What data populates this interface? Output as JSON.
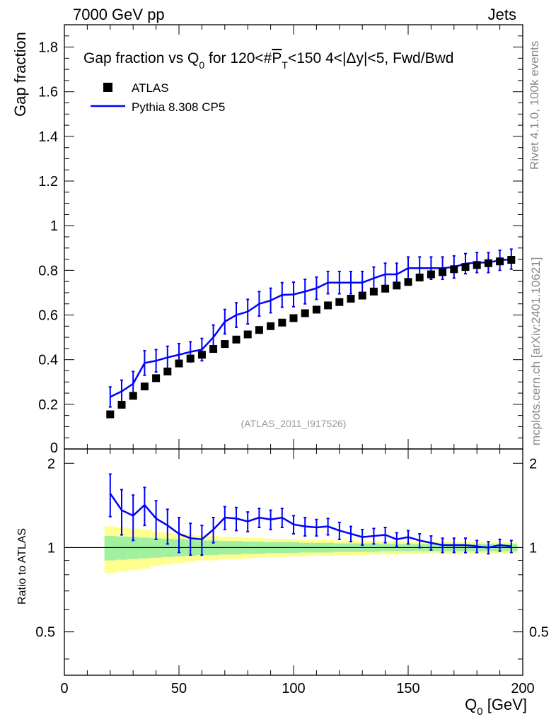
{
  "header": {
    "left": "7000 GeV pp",
    "right": "Jets",
    "side_info": "Rivet 4.1.0,  100k events",
    "side_source": "mcplots.cern.ch [arXiv:2401.10621]"
  },
  "colors": {
    "data": "#000000",
    "mc": "#0000ff",
    "band_inner": "#a0f0a0",
    "band_outer": "#ffff90"
  },
  "chart_data": {
    "type": "line",
    "title": "Gap fraction vs Q",
    "title_sub": "0",
    "title_rest": " for 120<#",
    "title_pt": "P",
    "title_pt_sub": "T",
    "title_tail": "<150  4<|Δy|<5, Fwd/Bwd",
    "watermark": "(ATLAS_2011_I917526)",
    "xlabel": "Q",
    "xlabel_sub": "0",
    "xlabel_unit": " [GeV]",
    "ylabel": "Gap fraction",
    "ratio_ylabel": "Ratio to ATLAS",
    "xlim": [
      0,
      200
    ],
    "ylim": [
      0,
      1.9
    ],
    "ratio_ylim": [
      0.35,
      2.25
    ],
    "x_ticks": [
      0,
      50,
      100,
      150,
      200
    ],
    "y_ticks": [
      0.2,
      0.4,
      0.6,
      0.8,
      1,
      1.2,
      1.4,
      1.6,
      1.8
    ],
    "y_zero_label": "0",
    "ratio_ticks": [
      0.5,
      1,
      2
    ],
    "x": [
      20,
      25,
      30,
      35,
      40,
      45,
      50,
      55,
      60,
      65,
      70,
      75,
      80,
      85,
      90,
      95,
      100,
      105,
      110,
      115,
      120,
      125,
      130,
      135,
      140,
      145,
      150,
      155,
      160,
      165,
      170,
      175,
      180,
      185,
      190,
      195
    ],
    "bin_edges": [
      17.5,
      197.5
    ],
    "series": [
      {
        "name": "ATLAS",
        "style": "markers",
        "values": [
          0.155,
          0.198,
          0.238,
          0.28,
          0.317,
          0.347,
          0.383,
          0.405,
          0.422,
          0.448,
          0.47,
          0.49,
          0.513,
          0.533,
          0.55,
          0.566,
          0.586,
          0.608,
          0.624,
          0.643,
          0.658,
          0.673,
          0.687,
          0.705,
          0.718,
          0.732,
          0.748,
          0.768,
          0.782,
          0.792,
          0.805,
          0.815,
          0.824,
          0.832,
          0.84,
          0.847
        ]
      },
      {
        "name": "Pythia 8.308 CP5",
        "style": "line",
        "values": [
          0.233,
          0.258,
          0.292,
          0.385,
          0.395,
          0.41,
          0.422,
          0.435,
          0.445,
          0.5,
          0.57,
          0.6,
          0.615,
          0.65,
          0.665,
          0.69,
          0.692,
          0.705,
          0.72,
          0.745,
          0.745,
          0.745,
          0.745,
          0.765,
          0.782,
          0.782,
          0.81,
          0.81,
          0.81,
          0.81,
          0.815,
          0.83,
          0.835,
          0.835,
          0.845,
          0.85
        ],
        "errors": [
          0.045,
          0.05,
          0.055,
          0.055,
          0.05,
          0.05,
          0.05,
          0.045,
          0.05,
          0.055,
          0.055,
          0.055,
          0.055,
          0.055,
          0.055,
          0.055,
          0.055,
          0.055,
          0.05,
          0.05,
          0.05,
          0.05,
          0.05,
          0.05,
          0.05,
          0.05,
          0.05,
          0.05,
          0.05,
          0.05,
          0.05,
          0.045,
          0.045,
          0.045,
          0.045,
          0.045
        ],
        "ratio": [
          1.56,
          1.36,
          1.3,
          1.42,
          1.27,
          1.2,
          1.12,
          1.08,
          1.07,
          1.16,
          1.28,
          1.27,
          1.24,
          1.28,
          1.26,
          1.28,
          1.21,
          1.19,
          1.18,
          1.19,
          1.15,
          1.12,
          1.09,
          1.1,
          1.11,
          1.07,
          1.09,
          1.06,
          1.04,
          1.02,
          1.02,
          1.02,
          1.01,
          1.0,
          1.02,
          1.01
        ],
        "ratio_errors": [
          0.27,
          0.25,
          0.24,
          0.22,
          0.2,
          0.17,
          0.16,
          0.14,
          0.13,
          0.12,
          0.12,
          0.12,
          0.1,
          0.1,
          0.1,
          0.1,
          0.09,
          0.09,
          0.08,
          0.08,
          0.08,
          0.07,
          0.07,
          0.07,
          0.07,
          0.06,
          0.06,
          0.06,
          0.06,
          0.06,
          0.06,
          0.06,
          0.05,
          0.05,
          0.05,
          0.05
        ]
      }
    ],
    "band_inner_half": [
      0.1,
      0.095,
      0.09,
      0.085,
      0.08,
      0.075,
      0.07,
      0.065,
      0.06,
      0.06,
      0.055,
      0.055,
      0.05,
      0.05,
      0.045,
      0.045,
      0.045,
      0.04,
      0.04,
      0.04,
      0.035,
      0.035,
      0.035,
      0.035,
      0.03,
      0.03,
      0.03,
      0.03,
      0.03,
      0.03,
      0.03,
      0.03,
      0.03,
      0.03,
      0.03,
      0.03
    ],
    "band_outer_half": [
      0.19,
      0.18,
      0.17,
      0.16,
      0.14,
      0.13,
      0.12,
      0.11,
      0.1,
      0.1,
      0.09,
      0.09,
      0.085,
      0.08,
      0.075,
      0.075,
      0.07,
      0.07,
      0.065,
      0.065,
      0.06,
      0.06,
      0.06,
      0.055,
      0.055,
      0.055,
      0.05,
      0.05,
      0.05,
      0.05,
      0.05,
      0.05,
      0.045,
      0.045,
      0.045,
      0.045
    ],
    "legend_position": "top-left"
  }
}
